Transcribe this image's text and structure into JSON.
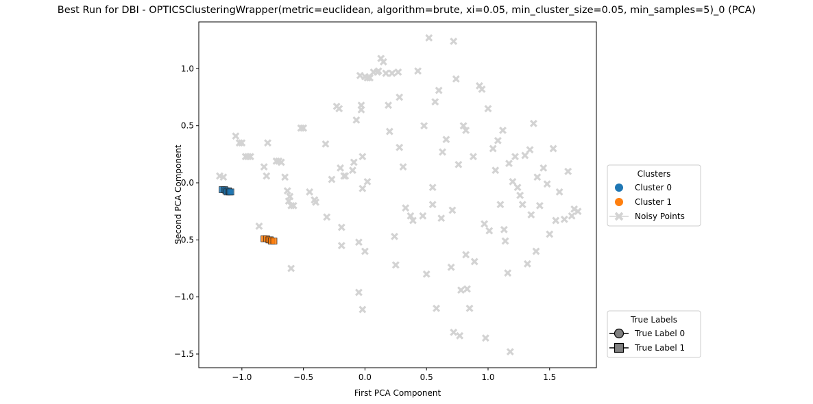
{
  "chart_data": {
    "type": "scatter",
    "title": "Best Run for DBI - OPTICSClusteringWrapper(metric=euclidean, algorithm=brute, xi=0.05, min_cluster_size=0.05, min_samples=5)_0 (PCA)",
    "xlabel": "First PCA Component",
    "ylabel": "Second PCA Component",
    "xlim": [
      -1.35,
      1.88
    ],
    "ylim": [
      -1.62,
      1.41
    ],
    "xticks": [
      -1.0,
      -0.5,
      0.0,
      0.5,
      1.0,
      1.5
    ],
    "yticks": [
      -1.5,
      -1.0,
      -0.5,
      0.0,
      0.5,
      1.0
    ],
    "xtick_labels": [
      "−1.0",
      "−0.5",
      "0.0",
      "0.5",
      "1.0",
      "1.5"
    ],
    "ytick_labels": [
      "−1.5",
      "−1.0",
      "−0.5",
      "0.0",
      "0.5",
      "1.0"
    ],
    "grid": false,
    "series": [
      {
        "name": "Cluster 0",
        "color": "#1f77b4",
        "marker": "square",
        "points": [
          [
            -1.16,
            -0.06
          ],
          [
            -1.14,
            -0.06
          ],
          [
            -1.13,
            -0.07
          ],
          [
            -1.12,
            -0.08
          ],
          [
            -1.11,
            -0.07
          ],
          [
            -1.1,
            -0.08
          ],
          [
            -1.09,
            -0.08
          ]
        ]
      },
      {
        "name": "Cluster 1",
        "color": "#ff7f0e",
        "marker": "square",
        "points": [
          [
            -0.82,
            -0.49
          ],
          [
            -0.8,
            -0.49
          ],
          [
            -0.78,
            -0.5
          ],
          [
            -0.77,
            -0.5
          ],
          [
            -0.76,
            -0.51
          ],
          [
            -0.74,
            -0.51
          ]
        ]
      },
      {
        "name": "Noisy Points",
        "color": "#d3d3d3",
        "marker": "x",
        "points": [
          [
            -1.18,
            0.06
          ],
          [
            -1.15,
            0.05
          ],
          [
            -1.05,
            0.41
          ],
          [
            -1.02,
            0.35
          ],
          [
            -1.0,
            0.35
          ],
          [
            -0.97,
            0.23
          ],
          [
            -0.95,
            0.23
          ],
          [
            -0.93,
            0.23
          ],
          [
            -0.86,
            -0.38
          ],
          [
            -0.82,
            0.14
          ],
          [
            -0.8,
            0.06
          ],
          [
            -0.79,
            0.35
          ],
          [
            -0.72,
            0.19
          ],
          [
            -0.7,
            0.19
          ],
          [
            -0.68,
            0.18
          ],
          [
            -0.65,
            0.05
          ],
          [
            -0.63,
            -0.07
          ],
          [
            -0.62,
            -0.16
          ],
          [
            -0.61,
            -0.12
          ],
          [
            -0.6,
            -0.2
          ],
          [
            -0.6,
            -0.75
          ],
          [
            -0.58,
            -0.2
          ],
          [
            -0.52,
            0.48
          ],
          [
            -0.5,
            0.48
          ],
          [
            -0.45,
            -0.08
          ],
          [
            -0.41,
            -0.15
          ],
          [
            -0.4,
            -0.17
          ],
          [
            -0.32,
            0.34
          ],
          [
            -0.31,
            -0.3
          ],
          [
            -0.27,
            0.03
          ],
          [
            -0.23,
            0.67
          ],
          [
            -0.21,
            0.65
          ],
          [
            -0.2,
            0.13
          ],
          [
            -0.19,
            -0.39
          ],
          [
            -0.19,
            -0.55
          ],
          [
            -0.17,
            0.06
          ],
          [
            -0.16,
            0.06
          ],
          [
            -0.1,
            0.11
          ],
          [
            -0.09,
            0.18
          ],
          [
            -0.07,
            0.55
          ],
          [
            -0.05,
            -0.96
          ],
          [
            -0.05,
            -0.52
          ],
          [
            -0.04,
            0.94
          ],
          [
            -0.03,
            0.68
          ],
          [
            -0.03,
            0.64
          ],
          [
            -0.02,
            -0.05
          ],
          [
            -0.02,
            0.23
          ],
          [
            -0.02,
            -1.11
          ],
          [
            0.0,
            0.93
          ],
          [
            0.0,
            -0.6
          ],
          [
            0.02,
            0.01
          ],
          [
            0.02,
            0.92
          ],
          [
            0.04,
            0.92
          ],
          [
            0.07,
            0.97
          ],
          [
            0.1,
            0.97
          ],
          [
            0.11,
            0.98
          ],
          [
            0.13,
            1.09
          ],
          [
            0.15,
            1.06
          ],
          [
            0.17,
            0.96
          ],
          [
            0.19,
            0.68
          ],
          [
            0.2,
            0.45
          ],
          [
            0.22,
            0.96
          ],
          [
            0.24,
            -0.47
          ],
          [
            0.25,
            -0.72
          ],
          [
            0.27,
            0.97
          ],
          [
            0.28,
            0.75
          ],
          [
            0.28,
            0.31
          ],
          [
            0.31,
            0.14
          ],
          [
            0.33,
            -0.22
          ],
          [
            0.37,
            -0.29
          ],
          [
            0.39,
            -0.33
          ],
          [
            0.43,
            0.98
          ],
          [
            0.47,
            -0.29
          ],
          [
            0.5,
            -0.8
          ],
          [
            0.52,
            1.27
          ],
          [
            0.55,
            -0.19
          ],
          [
            0.55,
            -0.04
          ],
          [
            0.57,
            0.71
          ],
          [
            0.6,
            0.81
          ],
          [
            0.62,
            -0.31
          ],
          [
            0.63,
            0.27
          ],
          [
            0.66,
            0.38
          ],
          [
            0.7,
            -0.74
          ],
          [
            0.71,
            -0.24
          ],
          [
            0.72,
            1.24
          ],
          [
            0.74,
            0.91
          ],
          [
            0.76,
            0.16
          ],
          [
            0.77,
            -1.34
          ],
          [
            0.8,
            0.5
          ],
          [
            0.82,
            0.46
          ],
          [
            0.82,
            -0.63
          ],
          [
            0.85,
            -1.1
          ],
          [
            0.88,
            0.23
          ],
          [
            0.89,
            -0.69
          ],
          [
            0.93,
            0.85
          ],
          [
            0.95,
            0.82
          ],
          [
            0.97,
            -0.36
          ],
          [
            0.98,
            -1.36
          ],
          [
            1.0,
            0.65
          ],
          [
            1.01,
            -0.42
          ],
          [
            1.04,
            0.3
          ],
          [
            1.06,
            0.11
          ],
          [
            1.08,
            0.37
          ],
          [
            1.1,
            -0.19
          ],
          [
            1.12,
            0.46
          ],
          [
            1.13,
            -0.41
          ],
          [
            1.14,
            -0.51
          ],
          [
            1.16,
            -0.79
          ],
          [
            1.17,
            0.17
          ],
          [
            1.18,
            -1.48
          ],
          [
            1.2,
            0.01
          ],
          [
            1.22,
            0.23
          ],
          [
            1.24,
            -0.04
          ],
          [
            1.26,
            -0.11
          ],
          [
            1.28,
            -0.19
          ],
          [
            1.3,
            0.24
          ],
          [
            1.32,
            -0.71
          ],
          [
            1.34,
            0.29
          ],
          [
            1.35,
            -0.28
          ],
          [
            1.37,
            0.52
          ],
          [
            1.39,
            -0.6
          ],
          [
            1.4,
            0.05
          ],
          [
            1.42,
            -0.2
          ],
          [
            1.45,
            0.13
          ],
          [
            1.48,
            -0.01
          ],
          [
            1.5,
            -0.45
          ],
          [
            1.53,
            0.3
          ],
          [
            1.55,
            -0.33
          ],
          [
            1.58,
            -0.08
          ],
          [
            1.62,
            -0.32
          ],
          [
            1.65,
            0.1
          ],
          [
            1.68,
            -0.29
          ],
          [
            1.7,
            -0.23
          ],
          [
            1.73,
            -0.25
          ],
          [
            0.48,
            0.5
          ],
          [
            0.58,
            -1.1
          ],
          [
            0.78,
            -0.94
          ],
          [
            0.83,
            -0.93
          ],
          [
            0.72,
            -1.31
          ]
        ]
      }
    ],
    "legends": [
      {
        "title": "Clusters",
        "placement": "right-middle",
        "entries": [
          {
            "label": "Cluster 0",
            "color": "#1f77b4",
            "marker": "circle"
          },
          {
            "label": "Cluster 1",
            "color": "#ff7f0e",
            "marker": "circle"
          },
          {
            "label": "Noisy Points",
            "color": "#d3d3d3",
            "marker": "x-line"
          }
        ]
      },
      {
        "title": "True Labels",
        "placement": "right-bottom",
        "entries": [
          {
            "label": "True Label 0",
            "color": "#808080",
            "marker": "circle-line"
          },
          {
            "label": "True Label 1",
            "color": "#808080",
            "marker": "square-line"
          }
        ]
      }
    ]
  }
}
